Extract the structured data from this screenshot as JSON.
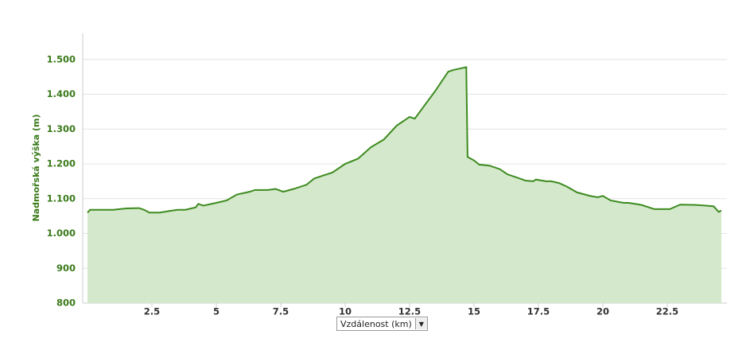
{
  "chart_data": {
    "type": "area",
    "y_label": "Nadmořská výška (m)",
    "x_label": "Vzdálenost (km)",
    "x": [
      0,
      0.1,
      1.0,
      1.5,
      2.0,
      2.2,
      2.4,
      2.8,
      3.2,
      3.5,
      3.8,
      4.2,
      4.3,
      4.5,
      5.0,
      5.4,
      5.8,
      6.3,
      6.5,
      7.0,
      7.3,
      7.6,
      8.0,
      8.5,
      8.8,
      9.2,
      9.5,
      10.0,
      10.5,
      11.0,
      11.5,
      12.0,
      12.3,
      12.5,
      12.7,
      13.0,
      13.5,
      14.0,
      14.2,
      14.7,
      14.75,
      15.0,
      15.2,
      15.6,
      16.0,
      16.3,
      16.7,
      17.0,
      17.3,
      17.4,
      17.8,
      18.0,
      18.3,
      18.6,
      19.0,
      19.5,
      19.8,
      20.0,
      20.3,
      20.8,
      21.0,
      21.5,
      22.0,
      22.6,
      23.0,
      23.6,
      24.0,
      24.3,
      24.5,
      24.6
    ],
    "series": [
      {
        "name": "Nadmořská výška",
        "color": "#3d8b1f",
        "fill": "#d4e8cb",
        "values": [
          1060,
          1068,
          1068,
          1072,
          1073,
          1068,
          1060,
          1060,
          1065,
          1068,
          1068,
          1075,
          1085,
          1080,
          1088,
          1095,
          1112,
          1120,
          1125,
          1125,
          1128,
          1120,
          1128,
          1140,
          1158,
          1168,
          1175,
          1200,
          1215,
          1248,
          1270,
          1310,
          1325,
          1335,
          1330,
          1360,
          1410,
          1465,
          1470,
          1478,
          1220,
          1210,
          1198,
          1195,
          1185,
          1170,
          1160,
          1152,
          1150,
          1155,
          1150,
          1150,
          1145,
          1135,
          1118,
          1108,
          1104,
          1108,
          1095,
          1088,
          1088,
          1082,
          1070,
          1070,
          1083,
          1082,
          1080,
          1078,
          1062,
          1066
        ]
      }
    ],
    "xlim": [
      0,
      24.6
    ],
    "ylim": [
      800,
      1575
    ],
    "xticks": [
      2.5,
      5,
      7.5,
      10,
      12.5,
      15,
      17.5,
      20,
      22.5
    ],
    "yticks": [
      800,
      900,
      {
        "value": 1000,
        "label": "1.000"
      },
      {
        "value": 1100,
        "label": "1.100"
      },
      {
        "value": 1200,
        "label": "1.200"
      },
      {
        "value": 1300,
        "label": "1.300"
      },
      {
        "value": 1400,
        "label": "1.400"
      },
      {
        "value": 1500,
        "label": "1.500"
      }
    ],
    "grid": true
  }
}
